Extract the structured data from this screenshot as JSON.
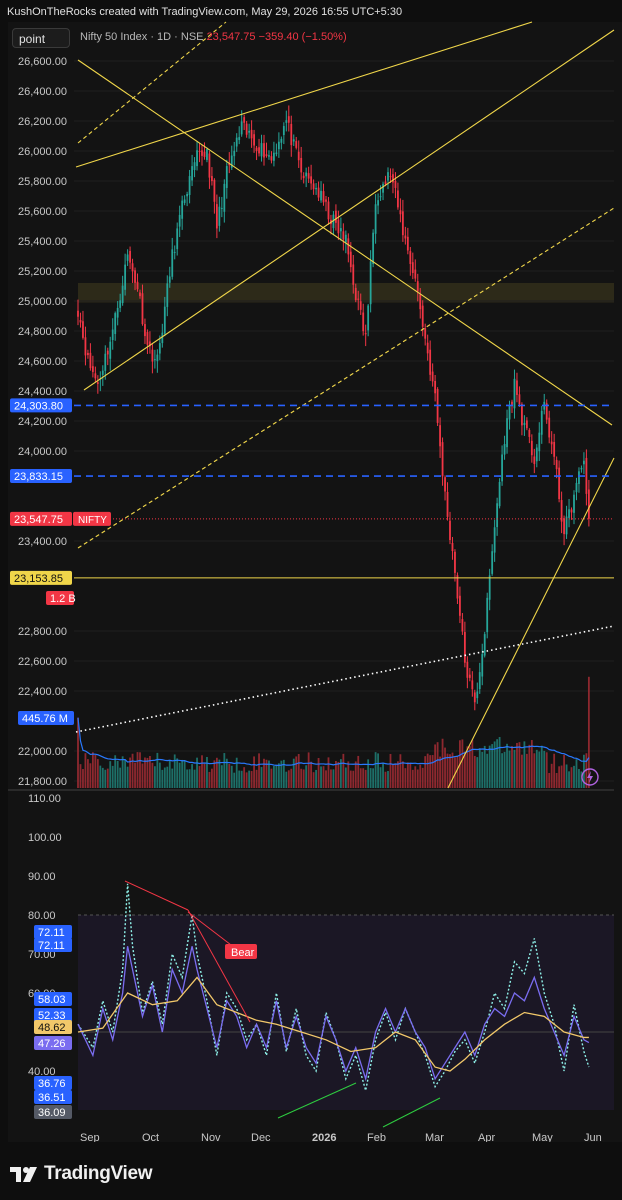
{
  "header": {
    "credit": "KushOnTheRocks created with TradingView.com, May 29, 2026 16:55 UTC+5:30"
  },
  "toolbar": {
    "symbol_button": "point"
  },
  "legend": {
    "name": "Nifty 50 Index · 1D · NSE",
    "price": "23,547.75",
    "change": "−359.40 (−1.50%)"
  },
  "colors": {
    "bull": "#26a69a",
    "bear": "#f23645",
    "trendline": "#f0d64a",
    "level_blue": "#2962ff",
    "rsi_purple": "#7a6df0",
    "rsi_dotted": "#8ef0e8",
    "rsi_ma": "#f2c86a",
    "volume_ma": "#2979ff",
    "background": "#131313"
  },
  "chart_data": [
    {
      "type": "candlestick",
      "title": "Nifty 50 Index · 1D · NSE",
      "ylim": [
        21750,
        26700
      ],
      "y_ticks": [
        "26,600.00",
        "26,400.00",
        "26,200.00",
        "26,000.00",
        "25,800.00",
        "25,600.00",
        "25,400.00",
        "25,200.00",
        "25,000.00",
        "24,800.00",
        "24,600.00",
        "24,400.00",
        "24,200.00",
        "24,000.00",
        "23,400.00",
        "22,800.00",
        "22,600.00",
        "22,400.00",
        "22,000.00",
        "21,800.00"
      ],
      "y_tick_values": [
        26600,
        26400,
        26200,
        26000,
        25800,
        25600,
        25400,
        25200,
        25000,
        24800,
        24600,
        24400,
        24200,
        24000,
        23400,
        22800,
        22600,
        22400,
        22000,
        21800
      ],
      "x_labels": [
        "Sep",
        "Oct",
        "Nov",
        "Dec",
        "2026",
        "Feb",
        "Mar",
        "Apr",
        "May",
        "Jun"
      ],
      "anchors": [
        {
          "d": 0,
          "c": 24950
        },
        {
          "d": 4,
          "c": 24600
        },
        {
          "d": 8,
          "c": 24450
        },
        {
          "d": 14,
          "c": 24800
        },
        {
          "d": 20,
          "c": 25300
        },
        {
          "d": 24,
          "c": 25100
        },
        {
          "d": 28,
          "c": 24700
        },
        {
          "d": 32,
          "c": 24600
        },
        {
          "d": 38,
          "c": 25300
        },
        {
          "d": 43,
          "c": 25700
        },
        {
          "d": 48,
          "c": 25950
        },
        {
          "d": 52,
          "c": 26000
        },
        {
          "d": 56,
          "c": 25500
        },
        {
          "d": 60,
          "c": 25850
        },
        {
          "d": 66,
          "c": 26150
        },
        {
          "d": 72,
          "c": 26050
        },
        {
          "d": 78,
          "c": 25950
        },
        {
          "d": 84,
          "c": 26200
        },
        {
          "d": 90,
          "c": 25850
        },
        {
          "d": 96,
          "c": 25750
        },
        {
          "d": 102,
          "c": 25550
        },
        {
          "d": 108,
          "c": 25400
        },
        {
          "d": 112,
          "c": 25050
        },
        {
          "d": 116,
          "c": 24750
        },
        {
          "d": 120,
          "c": 25700
        },
        {
          "d": 126,
          "c": 25850
        },
        {
          "d": 132,
          "c": 25400
        },
        {
          "d": 136,
          "c": 25150
        },
        {
          "d": 140,
          "c": 24750
        },
        {
          "d": 144,
          "c": 24350
        },
        {
          "d": 148,
          "c": 23700
        },
        {
          "d": 152,
          "c": 23200
        },
        {
          "d": 156,
          "c": 22600
        },
        {
          "d": 160,
          "c": 22300
        },
        {
          "d": 164,
          "c": 22800
        },
        {
          "d": 168,
          "c": 23500
        },
        {
          "d": 172,
          "c": 24100
        },
        {
          "d": 176,
          "c": 24450
        },
        {
          "d": 180,
          "c": 24150
        },
        {
          "d": 184,
          "c": 23950
        },
        {
          "d": 188,
          "c": 24300
        },
        {
          "d": 192,
          "c": 23950
        },
        {
          "d": 196,
          "c": 23450
        },
        {
          "d": 200,
          "c": 23700
        },
        {
          "d": 204,
          "c": 23950
        },
        {
          "d": 206,
          "c": 23547.75
        }
      ],
      "levels": [
        {
          "label": "24,303.80",
          "value": 24303.8,
          "style": "blue-dashed"
        },
        {
          "label": "23,833.15",
          "value": 23833.15,
          "style": "blue-dashed"
        },
        {
          "label": "23,153.85",
          "value": 23153.85,
          "style": "yellow-solid"
        }
      ],
      "last_price": {
        "label": "23,547.75",
        "tag": "NIFTY",
        "value": 23547.75
      },
      "supply_zone": [
        24990,
        25120
      ],
      "volume": {
        "last_label": "1.2 B",
        "ma_label": "445.76 M"
      }
    },
    {
      "type": "line",
      "title": "RSI",
      "ylim": [
        34,
        112
      ],
      "y_ticks": [
        "110.00",
        "100.00",
        "90.00",
        "80.00",
        "70.00",
        "60.00",
        "40.00"
      ],
      "y_tick_values": [
        110,
        100,
        90,
        80,
        70,
        60,
        40
      ],
      "badges": [
        {
          "label": "72.11",
          "value": 72.11,
          "color": "#2962ff"
        },
        {
          "label": "72.11",
          "value": 72.11,
          "color": "#2962ff"
        },
        {
          "label": "58.03",
          "value": 58.03,
          "color": "#2962ff"
        },
        {
          "label": "52.33",
          "value": 52.33,
          "color": "#2962ff"
        },
        {
          "label": "48.62",
          "value": 48.62,
          "color": "#f2c86a"
        },
        {
          "label": "47.26",
          "value": 47.26,
          "color": "#7a6df0"
        },
        {
          "label": "36.76",
          "value": 36.76,
          "color": "#2962ff"
        },
        {
          "label": "36.51",
          "value": 36.51,
          "color": "#2962ff"
        },
        {
          "label": "36.09",
          "value": 36.09,
          "color": "#555a66"
        }
      ],
      "divergence_label": "Bear",
      "series": [
        {
          "style": "dotted",
          "points": [
            [
              0,
              52
            ],
            [
              6,
              46
            ],
            [
              10,
              58
            ],
            [
              14,
              50
            ],
            [
              18,
              66
            ],
            [
              20,
              88
            ],
            [
              22,
              72
            ],
            [
              26,
              55
            ],
            [
              30,
              63
            ],
            [
              34,
              52
            ],
            [
              38,
              70
            ],
            [
              42,
              64
            ],
            [
              46,
              80
            ],
            [
              48,
              70
            ],
            [
              52,
              58
            ],
            [
              56,
              44
            ],
            [
              60,
              60
            ],
            [
              64,
              56
            ],
            [
              68,
              48
            ],
            [
              72,
              52
            ],
            [
              76,
              44
            ],
            [
              80,
              60
            ],
            [
              84,
              45
            ],
            [
              88,
              56
            ],
            [
              92,
              44
            ],
            [
              96,
              40
            ],
            [
              100,
              55
            ],
            [
              104,
              48
            ],
            [
              108,
              38
            ],
            [
              112,
              44
            ],
            [
              116,
              35
            ],
            [
              120,
              48
            ],
            [
              124,
              55
            ],
            [
              128,
              48
            ],
            [
              132,
              56
            ],
            [
              136,
              50
            ],
            [
              140,
              44
            ],
            [
              144,
              36
            ],
            [
              148,
              40
            ],
            [
              152,
              45
            ],
            [
              156,
              48
            ],
            [
              160,
              42
            ],
            [
              164,
              50
            ],
            [
              168,
              60
            ],
            [
              172,
              56
            ],
            [
              176,
              68
            ],
            [
              180,
              65
            ],
            [
              184,
              74
            ],
            [
              188,
              60
            ],
            [
              192,
              52
            ],
            [
              196,
              40
            ],
            [
              200,
              57
            ],
            [
              204,
              45
            ],
            [
              206,
              41
            ]
          ]
        },
        {
          "style": "solid",
          "points": [
            [
              0,
              52
            ],
            [
              6,
              44
            ],
            [
              10,
              56
            ],
            [
              14,
              48
            ],
            [
              18,
              60
            ],
            [
              20,
              72
            ],
            [
              22,
              66
            ],
            [
              26,
              54
            ],
            [
              30,
              62
            ],
            [
              34,
              50
            ],
            [
              38,
              66
            ],
            [
              42,
              60
            ],
            [
              46,
              72
            ],
            [
              48,
              66
            ],
            [
              52,
              56
            ],
            [
              56,
              46
            ],
            [
              60,
              58
            ],
            [
              64,
              54
            ],
            [
              68,
              46
            ],
            [
              72,
              52
            ],
            [
              76,
              46
            ],
            [
              80,
              58
            ],
            [
              84,
              46
            ],
            [
              88,
              54
            ],
            [
              92,
              46
            ],
            [
              96,
              42
            ],
            [
              100,
              54
            ],
            [
              104,
              48
            ],
            [
              108,
              40
            ],
            [
              112,
              46
            ],
            [
              116,
              38
            ],
            [
              120,
              50
            ],
            [
              124,
              56
            ],
            [
              128,
              50
            ],
            [
              132,
              56
            ],
            [
              136,
              50
            ],
            [
              140,
              46
            ],
            [
              144,
              38
            ],
            [
              148,
              42
            ],
            [
              152,
              46
            ],
            [
              156,
              50
            ],
            [
              160,
              44
            ],
            [
              164,
              52
            ],
            [
              168,
              56
            ],
            [
              172,
              54
            ],
            [
              176,
              60
            ],
            [
              180,
              58
            ],
            [
              184,
              64
            ],
            [
              188,
              56
            ],
            [
              192,
              50
            ],
            [
              196,
              44
            ],
            [
              200,
              54
            ],
            [
              204,
              48
            ],
            [
              206,
              47.3
            ]
          ]
        },
        {
          "style": "ma",
          "points": [
            [
              0,
              50
            ],
            [
              10,
              51
            ],
            [
              20,
              60
            ],
            [
              30,
              57
            ],
            [
              40,
              58
            ],
            [
              48,
              64
            ],
            [
              56,
              57
            ],
            [
              64,
              55
            ],
            [
              72,
              53
            ],
            [
              80,
              52
            ],
            [
              90,
              50
            ],
            [
              100,
              48
            ],
            [
              110,
              45
            ],
            [
              120,
              46
            ],
            [
              128,
              50
            ],
            [
              136,
              48
            ],
            [
              144,
              41
            ],
            [
              150,
              40
            ],
            [
              156,
              43
            ],
            [
              164,
              48
            ],
            [
              172,
              52
            ],
            [
              180,
              55
            ],
            [
              188,
              54
            ],
            [
              196,
              50
            ],
            [
              204,
              48.6
            ],
            [
              206,
              48.6
            ]
          ]
        }
      ]
    }
  ]
}
